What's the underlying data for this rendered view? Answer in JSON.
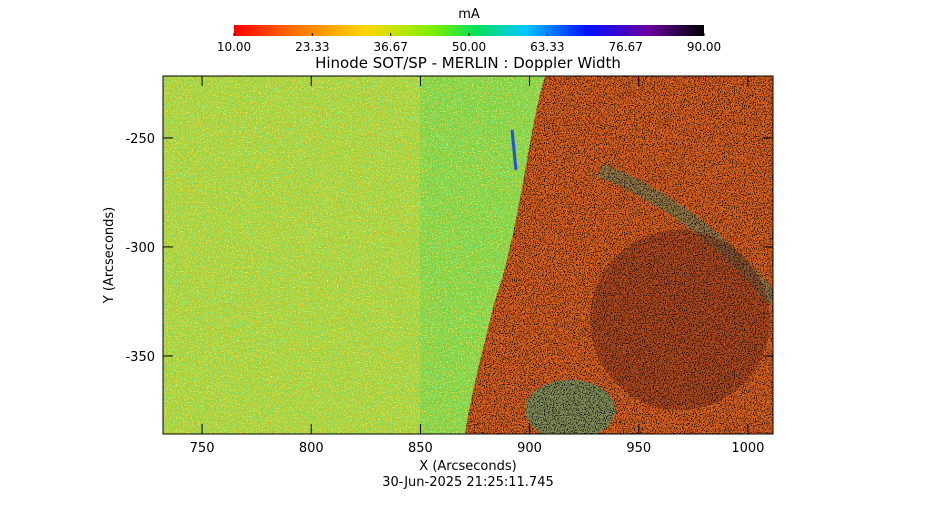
{
  "chart_data": {
    "type": "image",
    "title": "Hinode SOT/SP - MERLIN : Doppler Width",
    "xlabel": "X (Arcseconds)",
    "ylabel": "Y (Arcseconds)",
    "timestamp": "30-Jun-2025 21:25:11.745",
    "xlim": [
      732.1,
      1011.5
    ],
    "ylim": [
      -385.8,
      -221.6
    ],
    "xticks": [
      750,
      800,
      850,
      900,
      950,
      1000
    ],
    "yticks": [
      -250,
      -300,
      -350
    ],
    "colorbar": {
      "label": "mA",
      "lim": [
        10,
        90
      ],
      "ticks": [
        {
          "value": 10,
          "label": "10.00"
        },
        {
          "value": 23.33,
          "label": "23.33"
        },
        {
          "value": 36.67,
          "label": "36.67"
        },
        {
          "value": 50,
          "label": "50.00"
        },
        {
          "value": 63.33,
          "label": "63.33"
        },
        {
          "value": 76.67,
          "label": "76.67"
        },
        {
          "value": 90,
          "label": "90.00"
        }
      ]
    }
  }
}
